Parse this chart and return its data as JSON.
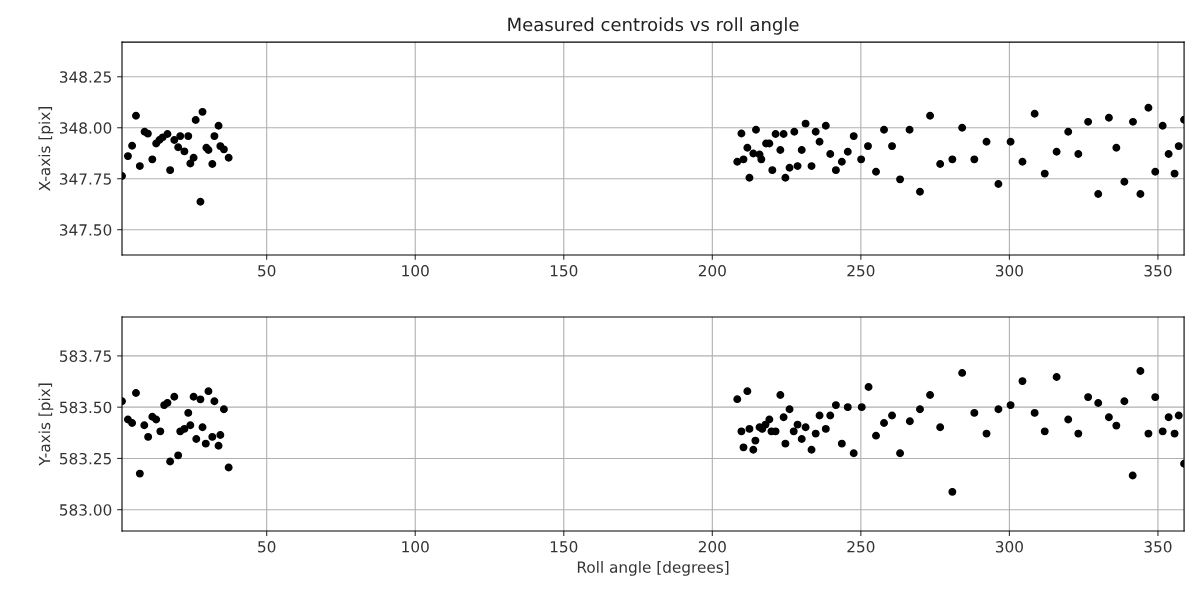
{
  "chart_data": [
    {
      "type": "scatter",
      "title": "Measured centroids vs roll angle",
      "ylabel": "X-axis [pix]",
      "marker": "circle",
      "grid": true,
      "xlim": [
        1.3,
        358.8
      ],
      "xticks": [
        50,
        100,
        150,
        200,
        250,
        300,
        350
      ],
      "ylim": [
        347.376,
        348.42
      ],
      "yticks": [
        {
          "value": 347.5,
          "label": "347.50"
        },
        347.75,
        {
          "value": 348.0,
          "label": "348.00"
        },
        348.25
      ],
      "series": [
        {
          "color": "#000000",
          "x": [
            1.3,
            3.3,
            4.7,
            6.0,
            7.3,
            8.9,
            10.0,
            11.5,
            12.8,
            13.9,
            15.0,
            16.6,
            17.5,
            18.9,
            20.2,
            20.9,
            22.3,
            23.6,
            24.3,
            25.4,
            26.1,
            27.7,
            28.4,
            29.7,
            30.4,
            31.7,
            32.4,
            33.8,
            34.4,
            35.6,
            37.2,
            208.4,
            210.5,
            209.8,
            211.8,
            212.5,
            213.8,
            214.7,
            215.9,
            216.5,
            218.1,
            219.2,
            220.2,
            221.3,
            222.9,
            224.0,
            224.6,
            226.0,
            227.6,
            228.7,
            230.1,
            231.4,
            233.4,
            234.8,
            236.1,
            238.2,
            239.7,
            241.6,
            243.6,
            245.6,
            247.6,
            250.1,
            252.4,
            255.1,
            257.8,
            260.5,
            263.2,
            266.4,
            269.9,
            273.3,
            276.7,
            280.8,
            284.1,
            288.2,
            292.3,
            296.3,
            300.4,
            304.4,
            308.5,
            311.9,
            315.9,
            319.8,
            323.2,
            326.5,
            329.9,
            333.5,
            336.0,
            338.7,
            341.6,
            344.1,
            346.8,
            349.1,
            351.6,
            353.6,
            355.6,
            357.0,
            358.8
          ],
          "values": [
            347.763,
            347.861,
            347.912,
            348.059,
            347.812,
            347.98,
            347.971,
            347.845,
            347.923,
            347.94,
            347.953,
            347.969,
            347.792,
            347.94,
            347.904,
            347.959,
            347.884,
            347.959,
            347.825,
            347.853,
            348.038,
            347.637,
            348.078,
            347.902,
            347.891,
            347.822,
            347.959,
            348.01,
            347.91,
            347.894,
            347.853,
            347.833,
            347.845,
            347.972,
            347.902,
            347.755,
            347.874,
            347.99,
            347.869,
            347.845,
            347.923,
            347.923,
            347.792,
            347.969,
            347.891,
            347.969,
            347.755,
            347.804,
            347.98,
            347.812,
            347.891,
            348.02,
            347.812,
            347.98,
            347.931,
            348.01,
            347.871,
            347.792,
            347.833,
            347.882,
            347.959,
            347.845,
            347.91,
            347.784,
            347.99,
            347.91,
            347.747,
            347.99,
            347.686,
            348.059,
            347.822,
            347.845,
            348.0,
            347.845,
            347.931,
            347.724,
            347.931,
            347.833,
            348.069,
            347.775,
            347.882,
            347.98,
            347.871,
            348.029,
            347.675,
            348.049,
            347.902,
            347.735,
            348.029,
            347.675,
            348.098,
            347.784,
            348.01,
            347.871,
            347.775,
            347.91,
            348.039
          ]
        }
      ]
    },
    {
      "type": "scatter",
      "xlabel": "Roll angle [degrees]",
      "ylabel": "Y-axis [pix]",
      "marker": "circle",
      "grid": true,
      "xlim": [
        1.3,
        358.8
      ],
      "xticks": [
        50,
        100,
        150,
        200,
        250,
        300,
        350
      ],
      "ylim": [
        582.896,
        583.94
      ],
      "yticks": [
        {
          "value": 583.0,
          "label": "583.00"
        },
        583.25,
        {
          "value": 583.5,
          "label": "583.50"
        },
        583.75
      ],
      "series": [
        {
          "color": "#000000",
          "x": [
            1.3,
            3.3,
            4.7,
            6.0,
            7.3,
            8.8,
            10.1,
            11.5,
            12.8,
            14.2,
            15.5,
            16.6,
            17.5,
            18.9,
            20.2,
            20.9,
            22.3,
            23.6,
            24.3,
            25.4,
            26.3,
            27.7,
            28.4,
            29.5,
            30.4,
            31.7,
            32.4,
            33.8,
            34.4,
            35.6,
            37.2,
            208.4,
            209.8,
            210.5,
            211.8,
            212.5,
            213.8,
            214.5,
            215.9,
            216.8,
            217.9,
            219.2,
            219.9,
            221.3,
            222.9,
            224.0,
            224.6,
            226.0,
            227.4,
            228.7,
            230.1,
            231.4,
            233.4,
            234.8,
            236.1,
            238.2,
            239.7,
            241.6,
            243.6,
            245.6,
            247.6,
            250.3,
            252.6,
            255.1,
            257.8,
            260.5,
            263.2,
            266.5,
            269.9,
            273.3,
            276.7,
            280.8,
            284.1,
            288.2,
            292.3,
            296.3,
            300.4,
            304.4,
            308.5,
            311.9,
            315.9,
            319.8,
            323.2,
            326.5,
            329.9,
            333.5,
            336.0,
            338.7,
            341.5,
            344.1,
            346.8,
            349.1,
            351.6,
            353.6,
            355.6,
            357.0,
            358.8
          ],
          "values": [
            583.529,
            583.44,
            583.423,
            583.569,
            583.176,
            583.412,
            583.355,
            583.453,
            583.44,
            583.382,
            583.51,
            583.521,
            583.235,
            583.551,
            583.265,
            583.382,
            583.394,
            583.472,
            583.412,
            583.551,
            583.345,
            583.538,
            583.402,
            583.322,
            583.578,
            583.355,
            583.529,
            583.312,
            583.364,
            583.49,
            583.206,
            583.539,
            583.382,
            583.304,
            583.578,
            583.394,
            583.292,
            583.337,
            583.402,
            583.394,
            583.415,
            583.44,
            583.382,
            583.382,
            583.559,
            583.451,
            583.322,
            583.49,
            583.382,
            583.415,
            583.345,
            583.402,
            583.292,
            583.371,
            583.459,
            583.394,
            583.459,
            583.51,
            583.322,
            583.5,
            583.275,
            583.5,
            583.598,
            583.361,
            583.423,
            583.459,
            583.275,
            583.431,
            583.49,
            583.559,
            583.402,
            583.087,
            583.667,
            583.472,
            583.371,
            583.49,
            583.51,
            583.627,
            583.472,
            583.382,
            583.647,
            583.44,
            583.371,
            583.549,
            583.52,
            583.451,
            583.41,
            583.529,
            583.167,
            583.676,
            583.371,
            583.549,
            583.382,
            583.451,
            583.371,
            583.459,
            583.224
          ]
        }
      ]
    }
  ]
}
